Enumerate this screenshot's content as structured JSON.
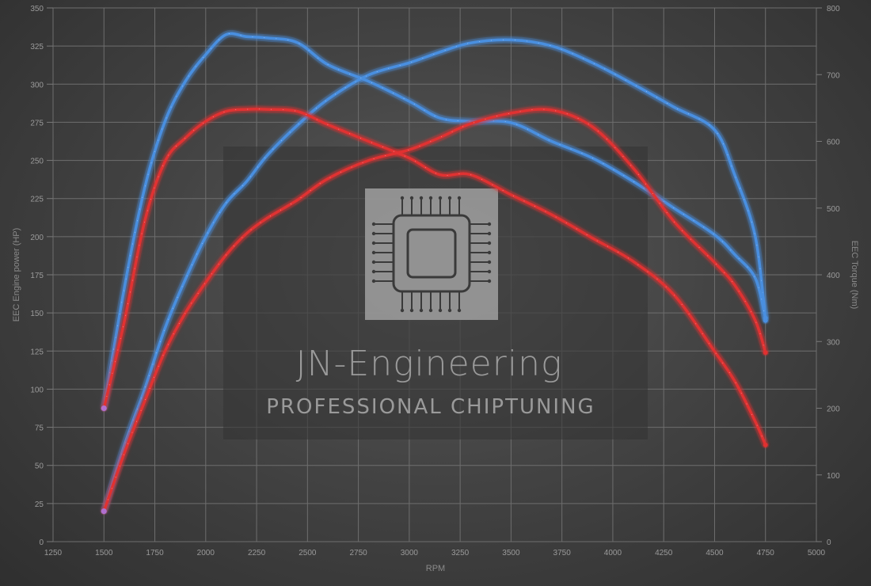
{
  "chart_data": {
    "type": "line",
    "xlabel": "RPM",
    "ylabel": "EEC Engine power (HP)",
    "y2label": "EEC Torque (Nm)",
    "xlim": [
      1250,
      5000
    ],
    "ylim": [
      0,
      350
    ],
    "y2lim": [
      0,
      800
    ],
    "x_ticks": [
      1250,
      1500,
      1750,
      2000,
      2250,
      2500,
      2750,
      3000,
      3250,
      3500,
      3750,
      4000,
      4250,
      4500,
      4750,
      5000
    ],
    "y_ticks": [
      0,
      25,
      50,
      75,
      100,
      125,
      150,
      175,
      200,
      225,
      250,
      275,
      300,
      325,
      350
    ],
    "y2_ticks": [
      0,
      100,
      200,
      300,
      400,
      500,
      600,
      700,
      800
    ],
    "grid": true,
    "colors": {
      "tuned": "#4a8fe0",
      "stock": "#e03030",
      "start": "#b070d0"
    },
    "series": [
      {
        "axis": "left",
        "style": "tuned",
        "x": [
          1500,
          1600,
          1700,
          1800,
          1900,
          2000,
          2100,
          2200,
          2300,
          2450,
          2600,
          2800,
          3000,
          3150,
          3300,
          3500,
          3700,
          3900,
          4100,
          4300,
          4500,
          4600,
          4700,
          4750
        ],
        "values": [
          20,
          63,
          100,
          140,
          172,
          200,
          222,
          236,
          253,
          273,
          290,
          306,
          314,
          321,
          327,
          329,
          325,
          314,
          300,
          285,
          270,
          240,
          200,
          145
        ]
      },
      {
        "axis": "right",
        "style": "tuned",
        "x": [
          1500,
          1600,
          1700,
          1800,
          1900,
          2000,
          2100,
          2200,
          2300,
          2450,
          2600,
          2800,
          3000,
          3150,
          3300,
          3500,
          3700,
          3900,
          4100,
          4300,
          4500,
          4600,
          4700,
          4750
        ],
        "values": [
          200,
          380,
          530,
          630,
          690,
          730,
          760,
          757,
          755,
          748,
          715,
          690,
          660,
          635,
          630,
          628,
          600,
          575,
          540,
          500,
          460,
          430,
          395,
          335
        ]
      },
      {
        "axis": "left",
        "style": "stock",
        "x": [
          1500,
          1600,
          1700,
          1800,
          1900,
          2000,
          2100,
          2200,
          2300,
          2450,
          2600,
          2800,
          3000,
          3150,
          3300,
          3500,
          3700,
          3900,
          4100,
          4300,
          4500,
          4600,
          4700,
          4750
        ],
        "values": [
          20,
          58,
          92,
          125,
          150,
          170,
          188,
          202,
          212,
          224,
          238,
          250,
          257,
          265,
          274,
          281,
          283,
          272,
          245,
          210,
          183,
          168,
          145,
          124
        ]
      },
      {
        "axis": "right",
        "style": "stock",
        "x": [
          1500,
          1600,
          1700,
          1800,
          1900,
          2000,
          2100,
          2200,
          2300,
          2450,
          2600,
          2800,
          3000,
          3150,
          3300,
          3500,
          3700,
          3900,
          4100,
          4300,
          4500,
          4600,
          4700,
          4750
        ],
        "values": [
          200,
          330,
          480,
          570,
          605,
          630,
          645,
          648,
          648,
          645,
          625,
          600,
          575,
          550,
          550,
          520,
          490,
          455,
          420,
          370,
          285,
          240,
          180,
          145
        ]
      }
    ]
  },
  "watermark": {
    "title": "JN-Engineering",
    "subtitle": "PROFESSIONAL CHIPTUNING",
    "logo_icon": "chip-icon"
  }
}
